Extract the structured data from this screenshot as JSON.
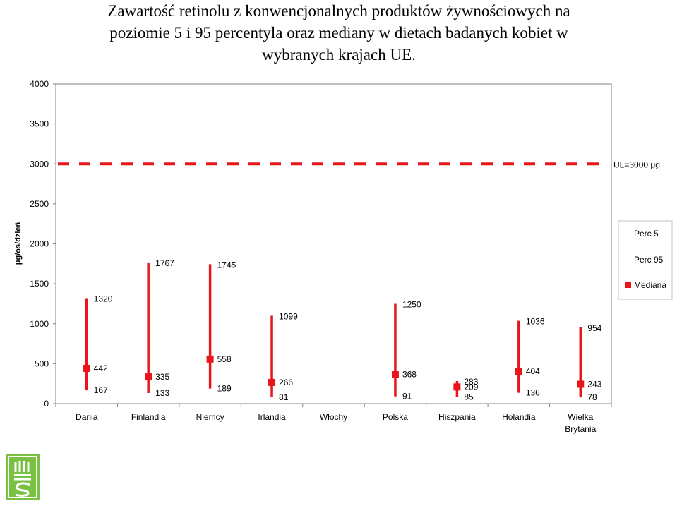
{
  "title_lines": [
    "Zawartość retinolu z konwencjonalnych produktów żywnościowych na",
    "poziomie 5 i 95 percentyla oraz mediany w dietach badanych kobiet w",
    "wybranych krajach UE."
  ],
  "colors": {
    "marker": "#e8151b",
    "plot_border": "#808080",
    "grid": "none",
    "logo_bg": "#7ac143"
  },
  "chart_data": {
    "type": "range",
    "ylabel": "μg/os/dzień",
    "ylim": [
      0,
      4000
    ],
    "yticks": [
      0,
      500,
      1000,
      1500,
      2000,
      2500,
      3000,
      3500,
      4000
    ],
    "categories": [
      "Dania",
      "Finlandia",
      "Niemcy",
      "Irlandia",
      "Włochy",
      "Polska",
      "Hiszpania",
      "Holandia",
      "Wielka Brytania"
    ],
    "category_lines": [
      [
        "Dania"
      ],
      [
        "Finlandia"
      ],
      [
        "Niemcy"
      ],
      [
        "Irlandia"
      ],
      [
        "Włochy"
      ],
      [
        "Polska"
      ],
      [
        "Hiszpania"
      ],
      [
        "Holandia"
      ],
      [
        "Wielka",
        "Brytania"
      ]
    ],
    "series": [
      {
        "name": "Perc 5",
        "values": [
          167,
          133,
          189,
          81,
          null,
          91,
          85,
          136,
          78
        ]
      },
      {
        "name": "Perc 95",
        "values": [
          1320,
          1767,
          1745,
          1099,
          null,
          1250,
          283,
          1036,
          954
        ]
      },
      {
        "name": "Mediana",
        "values": [
          442,
          335,
          558,
          266,
          null,
          368,
          209,
          404,
          243
        ]
      }
    ],
    "reference_line": {
      "value": 3000,
      "label": "UL=3000 μg",
      "style": "dashed"
    },
    "legend": {
      "position": "right",
      "entries": [
        "Perc 5",
        "Perc 95",
        "Mediana"
      ]
    }
  }
}
